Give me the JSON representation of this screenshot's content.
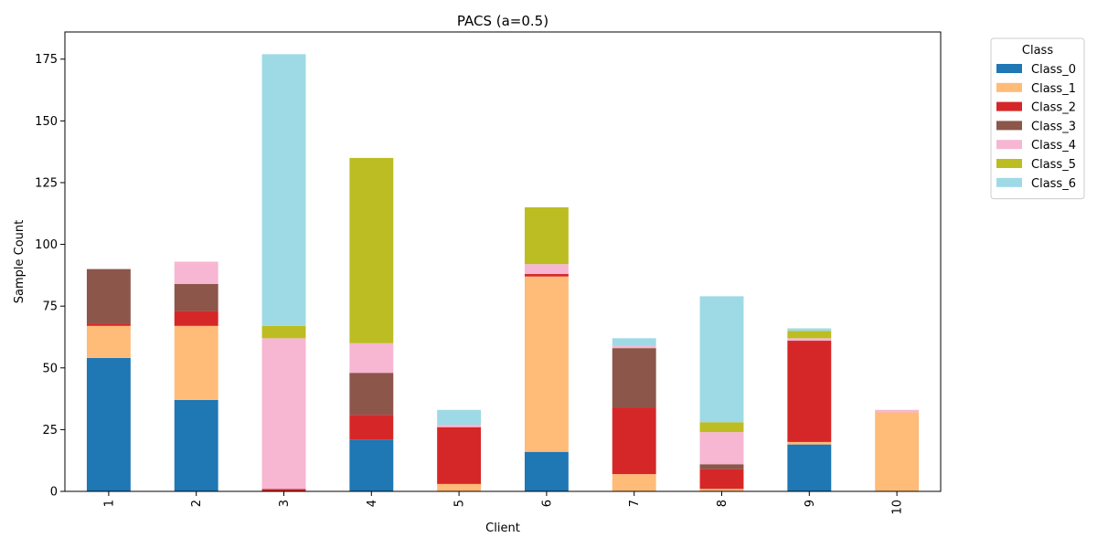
{
  "chart_data": {
    "type": "bar",
    "stacked": true,
    "title": "PACS (a=0.5)",
    "xlabel": "Client",
    "ylabel": "Sample Count",
    "categories": [
      "1",
      "2",
      "3",
      "4",
      "5",
      "6",
      "7",
      "8",
      "9",
      "10"
    ],
    "ylim": [
      0,
      186
    ],
    "yticks": [
      0,
      25,
      50,
      75,
      100,
      125,
      150,
      175
    ],
    "grid": false,
    "legend": {
      "title": "Class",
      "placement": "outside-top-right"
    },
    "series": [
      {
        "name": "Class_0",
        "color": "#1f77b4",
        "values": [
          54,
          37,
          0,
          21,
          0,
          16,
          0,
          0,
          19,
          0
        ]
      },
      {
        "name": "Class_1",
        "color": "#ffbb78",
        "values": [
          13,
          30,
          0,
          0,
          3,
          71,
          7,
          1,
          1,
          32
        ]
      },
      {
        "name": "Class_2",
        "color": "#d62728",
        "values": [
          1,
          6,
          1,
          10,
          23,
          1,
          27,
          8,
          41,
          0
        ]
      },
      {
        "name": "Class_3",
        "color": "#8c564b",
        "values": [
          22,
          11,
          0,
          17,
          0,
          0,
          24,
          2,
          0,
          0
        ]
      },
      {
        "name": "Class_4",
        "color": "#f7b6d2",
        "values": [
          0,
          9,
          61,
          12,
          1,
          4,
          1,
          13,
          1,
          1
        ]
      },
      {
        "name": "Class_5",
        "color": "#bcbd22",
        "values": [
          0,
          0,
          5,
          75,
          0,
          23,
          0,
          4,
          3,
          0
        ]
      },
      {
        "name": "Class_6",
        "color": "#9edae5",
        "values": [
          0,
          0,
          110,
          0,
          6,
          0,
          3,
          51,
          1,
          0
        ]
      }
    ]
  }
}
